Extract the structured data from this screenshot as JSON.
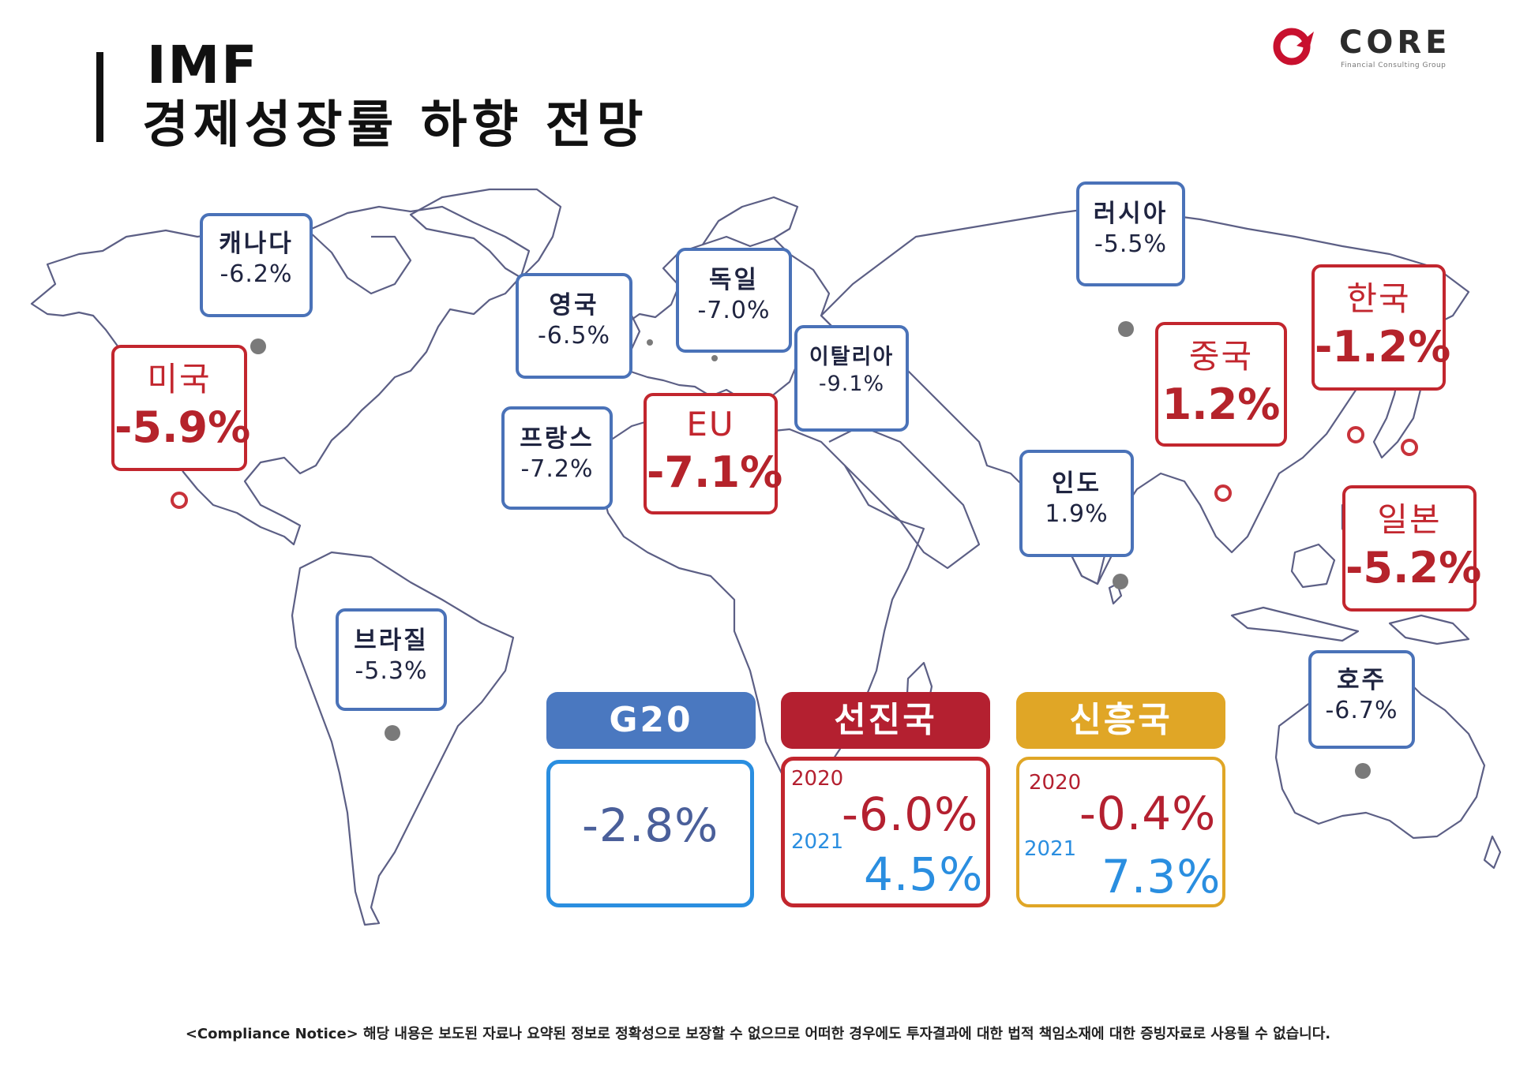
{
  "title": {
    "line1": "IMF",
    "line2": "경제성장률 하향 전망"
  },
  "logo": {
    "name": "CORE",
    "tagline": "Financial Consulting Group"
  },
  "countries": {
    "canada": {
      "name": "캐나다",
      "value": "-6.2%"
    },
    "usa": {
      "name": "미국",
      "value": "-5.9%"
    },
    "uk": {
      "name": "영국",
      "value": "-6.5%"
    },
    "germany": {
      "name": "독일",
      "value": "-7.0%"
    },
    "italy": {
      "name": "이탈리아",
      "value": "-9.1%"
    },
    "france": {
      "name": "프랑스",
      "value": "-7.2%"
    },
    "eu": {
      "name": "EU",
      "value": "-7.1%"
    },
    "russia": {
      "name": "러시아",
      "value": "-5.5%"
    },
    "korea": {
      "name": "한국",
      "value": "-1.2%"
    },
    "china": {
      "name": "중국",
      "value": "1.2%"
    },
    "india": {
      "name": "인도",
      "value": "1.9%"
    },
    "japan": {
      "name": "일본",
      "value": "-5.2%"
    },
    "brazil": {
      "name": "브라질",
      "value": "-5.3%"
    },
    "australia": {
      "name": "호주",
      "value": "-6.7%"
    }
  },
  "groups": {
    "g20": {
      "label": "G20",
      "value": "-2.8%",
      "color": "#4a78c0"
    },
    "advanced": {
      "label": "선진국",
      "year1": "2020",
      "value1": "-6.0%",
      "year2": "2021",
      "value2": "4.5%",
      "color": "#b42030"
    },
    "emerging": {
      "label": "신흥국",
      "year1": "2020",
      "value1": "-0.4%",
      "year2": "2021",
      "value2": "7.3%",
      "color": "#e0a626"
    }
  },
  "colors": {
    "highlight_red": "#c2262e",
    "neutral_blue": "#4a72b8",
    "positive_blue": "#2a8ee0",
    "map_outline": "#59597f"
  },
  "notice": "<Compliance Notice> 해당 내용은 보도된 자료나 요약된 정보로 정확성으로 보장할 수 없으므로 어떠한 경우에도 투자결과에 대한 법적 책임소재에 대한 증빙자료로 사용될 수 없습니다."
}
